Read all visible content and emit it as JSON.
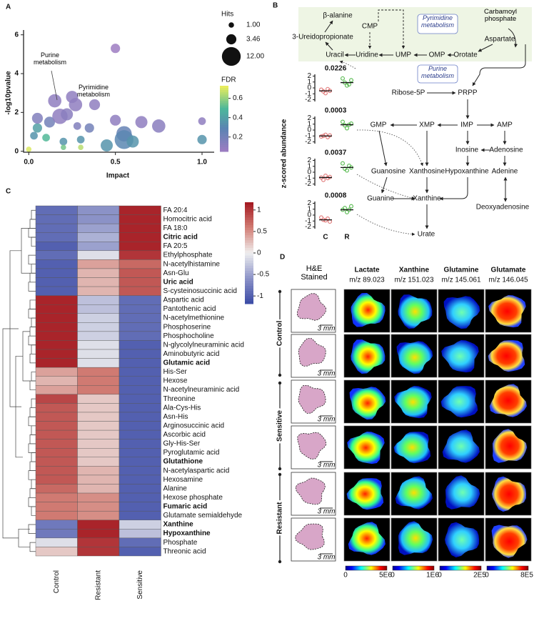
{
  "panel_labels": {
    "a": "A",
    "b": "B",
    "c": "C",
    "d": "D"
  },
  "chart_data": [
    {
      "type": "scatter",
      "xlabel": "Impact",
      "ylabel": "-log10pvalue",
      "xlim": [
        -0.03,
        1.07
      ],
      "ylim": [
        -0.05,
        6.1
      ],
      "xticks": [
        {
          "value": 0,
          "label": "0.0"
        },
        {
          "value": 0.5,
          "label": "0.5"
        },
        {
          "value": 1,
          "label": "1.0"
        }
      ],
      "yticks": [
        0,
        2,
        4,
        6
      ],
      "x": [
        0.0,
        0.03,
        0.05,
        0.1,
        0.12,
        0.15,
        0.18,
        0.2,
        0.22,
        0.25,
        0.27,
        0.3,
        0.3,
        0.35,
        0.38,
        0.45,
        0.5,
        0.55,
        0.55,
        0.6,
        0.65,
        0.75,
        0.5,
        0.05,
        1.0,
        1.0,
        0.28,
        0.2
      ],
      "y": [
        0.1,
        0.8,
        1.2,
        0.7,
        1.5,
        2.6,
        1.8,
        0.5,
        1.9,
        2.8,
        2.4,
        0.6,
        0.2,
        1.2,
        2.4,
        0.3,
        1.6,
        0.9,
        0.6,
        0.5,
        1.5,
        1.3,
        5.3,
        1.7,
        1.55,
        0.6,
        1.3,
        0.2
      ],
      "size": [
        1,
        2,
        3,
        2,
        4,
        6,
        8,
        2,
        5,
        5,
        6,
        2,
        1,
        3,
        4,
        5,
        4,
        8,
        12,
        5,
        5,
        6,
        3,
        4,
        2,
        3,
        2,
        1
      ],
      "fdr": [
        0.7,
        0.35,
        0.4,
        0.5,
        0.2,
        0.1,
        0.1,
        0.35,
        0.12,
        0.1,
        0.1,
        0.35,
        0.65,
        0.2,
        0.1,
        0.35,
        0.1,
        0.25,
        0.3,
        0.35,
        0.1,
        0.12,
        0.05,
        0.15,
        0.1,
        0.35,
        0.15,
        0.55
      ],
      "size_legend": {
        "title": "Hits",
        "values": [
          {
            "value": 1,
            "label": "1.00"
          },
          {
            "value": 3.46,
            "label": "3.46"
          },
          {
            "value": 12,
            "label": "12.00"
          }
        ]
      },
      "color_legend": {
        "title": "FDR",
        "lim": [
          0.05,
          0.73
        ],
        "ticks": [
          0.2,
          0.4,
          0.6
        ]
      },
      "annotations": [
        "Purine metabolism",
        "Pyrimidine metabolism"
      ]
    },
    {
      "type": "heatmap",
      "columns": [
        "Control",
        "Resistant",
        "Sensitive"
      ],
      "clim": [
        -1.18,
        1.18
      ],
      "colorbar_ticks": [
        1,
        0.5,
        0,
        -0.5,
        -1
      ],
      "rows": [
        {
          "name": "FA 20:4",
          "values": [
            -0.9,
            -0.6,
            1.1
          ],
          "bold": false
        },
        {
          "name": "Homocitric acid",
          "values": [
            -0.9,
            -0.6,
            1.1
          ],
          "bold": false
        },
        {
          "name": "FA 18:0",
          "values": [
            -0.9,
            -0.5,
            1.1
          ],
          "bold": false
        },
        {
          "name": "Citric acid",
          "values": [
            -0.9,
            -0.4,
            1.1
          ],
          "bold": true
        },
        {
          "name": "FA 20:5",
          "values": [
            -1,
            -0.5,
            1.1
          ],
          "bold": false
        },
        {
          "name": "Ethylphosphate",
          "values": [
            -0.9,
            -0.1,
            1.0
          ],
          "bold": false
        },
        {
          "name": "N-acetylhistamine",
          "values": [
            -1,
            0.4,
            0.7
          ],
          "bold": false
        },
        {
          "name": "Asn-Glu",
          "values": [
            -1,
            0.3,
            0.8
          ],
          "bold": false
        },
        {
          "name": "Uric acid",
          "values": [
            -1,
            0.3,
            0.8
          ],
          "bold": true
        },
        {
          "name": "S-cysteinosuccinic acid",
          "values": [
            -1,
            0.3,
            0.8
          ],
          "bold": false
        },
        {
          "name": "Aspartic acid",
          "values": [
            1.1,
            -0.3,
            -0.9
          ],
          "bold": false
        },
        {
          "name": "Pantothenic acid",
          "values": [
            1.1,
            -0.3,
            -0.9
          ],
          "bold": false
        },
        {
          "name": "N-acetylmethionine",
          "values": [
            1.1,
            -0.2,
            -0.9
          ],
          "bold": false
        },
        {
          "name": "Phosphoserine",
          "values": [
            1.1,
            -0.2,
            -0.9
          ],
          "bold": false
        },
        {
          "name": "Phosphocholine",
          "values": [
            1.1,
            -0.2,
            -0.9
          ],
          "bold": false
        },
        {
          "name": "N-glycolylneuraminic acid",
          "values": [
            1.1,
            -0.1,
            -1
          ],
          "bold": false
        },
        {
          "name": "Aminobutyric acid",
          "values": [
            1.1,
            -0.1,
            -1
          ],
          "bold": false
        },
        {
          "name": "Glutamic acid",
          "values": [
            1.1,
            -0.1,
            -1
          ],
          "bold": true
        },
        {
          "name": "His-Ser",
          "values": [
            0.4,
            0.6,
            -1
          ],
          "bold": false
        },
        {
          "name": "Hexose",
          "values": [
            0.3,
            0.6,
            -1
          ],
          "bold": false
        },
        {
          "name": "N-acetylneuraminic acid",
          "values": [
            0.4,
            0.6,
            -1
          ],
          "bold": false
        },
        {
          "name": "Threonine",
          "values": [
            0.9,
            0.2,
            -1
          ],
          "bold": false
        },
        {
          "name": "Ala-Cys-His",
          "values": [
            0.8,
            0.2,
            -1
          ],
          "bold": false
        },
        {
          "name": "Asn-His",
          "values": [
            0.8,
            0.2,
            -1
          ],
          "bold": false
        },
        {
          "name": "Arginosuccinic acid",
          "values": [
            0.8,
            0.2,
            -1
          ],
          "bold": false
        },
        {
          "name": "Ascorbic acid",
          "values": [
            0.8,
            0.2,
            -1
          ],
          "bold": false
        },
        {
          "name": "Gly-His-Ser",
          "values": [
            0.8,
            0.2,
            -1
          ],
          "bold": false
        },
        {
          "name": "Pyroglutamic acid",
          "values": [
            0.8,
            0.2,
            -1
          ],
          "bold": false
        },
        {
          "name": "Glutathione",
          "values": [
            0.8,
            0.2,
            -1
          ],
          "bold": true
        },
        {
          "name": "N-acetylaspartic acid",
          "values": [
            0.8,
            0.3,
            -1
          ],
          "bold": false
        },
        {
          "name": "Hexosamine",
          "values": [
            0.8,
            0.3,
            -1
          ],
          "bold": false
        },
        {
          "name": "Alanine",
          "values": [
            0.7,
            0.3,
            -1
          ],
          "bold": false
        },
        {
          "name": "Hexose phosphate",
          "values": [
            0.6,
            0.5,
            -1
          ],
          "bold": false
        },
        {
          "name": "Fumaric acid",
          "values": [
            0.6,
            0.5,
            -1
          ],
          "bold": true
        },
        {
          "name": "Glutamate semialdehyde",
          "values": [
            0.6,
            0.5,
            -1
          ],
          "bold": false
        },
        {
          "name": "Xanthine",
          "values": [
            -0.8,
            1.1,
            -0.2
          ],
          "bold": true
        },
        {
          "name": "Hypoxanthine",
          "values": [
            -0.8,
            1.1,
            -0.3
          ],
          "bold": true
        },
        {
          "name": "Phosphate",
          "values": [
            -0.1,
            1.0,
            -0.9
          ],
          "bold": false
        },
        {
          "name": "Threonic acid",
          "values": [
            0.2,
            1.0,
            -1
          ],
          "bold": false
        }
      ]
    },
    {
      "type": "strip",
      "pvalue_label": "0.0226",
      "ylim": [
        -2.3,
        2.3
      ],
      "yticks": [
        -2,
        -1,
        0,
        1,
        2
      ],
      "groups": [
        {
          "color": "#e07575",
          "values": [
            -0.3,
            -0.6,
            -0.9,
            -0.2,
            -0.5
          ],
          "median": -0.5
        },
        {
          "color": "#52b84a",
          "values": [
            1.6,
            0.9,
            0.4,
            0.6,
            1.3
          ],
          "median": 0.9
        }
      ]
    },
    {
      "type": "strip",
      "pvalue_label": "0.0003",
      "ylim": [
        -2.3,
        2.3
      ],
      "yticks": [
        -2,
        -1,
        0,
        1,
        2
      ],
      "groups": [
        {
          "color": "#e07575",
          "values": [
            -1.1,
            -1.0,
            -0.8,
            -1.2,
            -0.9
          ],
          "median": -1.0
        },
        {
          "color": "#52b84a",
          "values": [
            1.4,
            0.8,
            0.3,
            0.9,
            1.1
          ],
          "median": 0.9
        }
      ]
    },
    {
      "type": "strip",
      "pvalue_label": "0.0037",
      "ylim": [
        -2.3,
        2.3
      ],
      "yticks": [
        -2,
        -1,
        0,
        1,
        2
      ],
      "groups": [
        {
          "color": "#e07575",
          "values": [
            -0.9,
            -1.3,
            -0.6,
            -1.0,
            -0.8
          ],
          "median": -0.9
        },
        {
          "color": "#52b84a",
          "values": [
            1.5,
            0.6,
            0.3,
            1.1,
            0.8
          ],
          "median": 0.8
        }
      ]
    },
    {
      "type": "strip",
      "pvalue_label": "0.0008",
      "ylim": [
        -2.3,
        2.3
      ],
      "yticks": [
        -2,
        -1,
        0,
        1,
        2
      ],
      "categories": [
        "C",
        "R"
      ],
      "groups": [
        {
          "color": "#e07575",
          "values": [
            -0.4,
            -0.8,
            -0.9,
            -0.6,
            -1.1
          ],
          "median": -0.8
        },
        {
          "color": "#52b84a",
          "values": [
            0.9,
            1.2,
            0.5,
            0.9,
            1.5
          ],
          "median": 0.9
        }
      ]
    }
  ],
  "pathway": {
    "ylabel": "z-scored abundance",
    "pyrimidine_box": "Pyrimidine metabolism",
    "purine_box": "Purine metabolism",
    "nodes": [
      "β-alanine",
      "CMP",
      "Carbamoyl phosphate",
      "Aspartate",
      "3-Ureidopropionate",
      "Uracil",
      "Uridine",
      "UMP",
      "OMP",
      "Orotate",
      "Ribose-5P",
      "PRPP",
      "GMP",
      "XMP",
      "IMP",
      "AMP",
      "Inosine",
      "Adenosine",
      "Guanosine",
      "Xanthosine",
      "Hypoxanthine",
      "Adenine",
      "Guanine",
      "Xanthine",
      "Deoxyadenosine",
      "Urate"
    ]
  },
  "imaging": {
    "he_title": "H&E Stained",
    "channels": [
      {
        "name": "Lactate",
        "mz": "m/z 89.023",
        "scale": [
          "0",
          "5E6"
        ]
      },
      {
        "name": "Xanthine",
        "mz": "m/z 151.023",
        "scale": [
          "0",
          "1E6"
        ]
      },
      {
        "name": "Glutamine",
        "mz": "m/z 145.061",
        "scale": [
          "0",
          "2E5"
        ]
      },
      {
        "name": "Glutamate",
        "mz": "m/z 146.045",
        "scale": [
          "0",
          "8E5"
        ]
      }
    ],
    "groups": [
      "Control",
      "Sensitive",
      "Resistant"
    ],
    "scale_bar": "3 mm"
  }
}
